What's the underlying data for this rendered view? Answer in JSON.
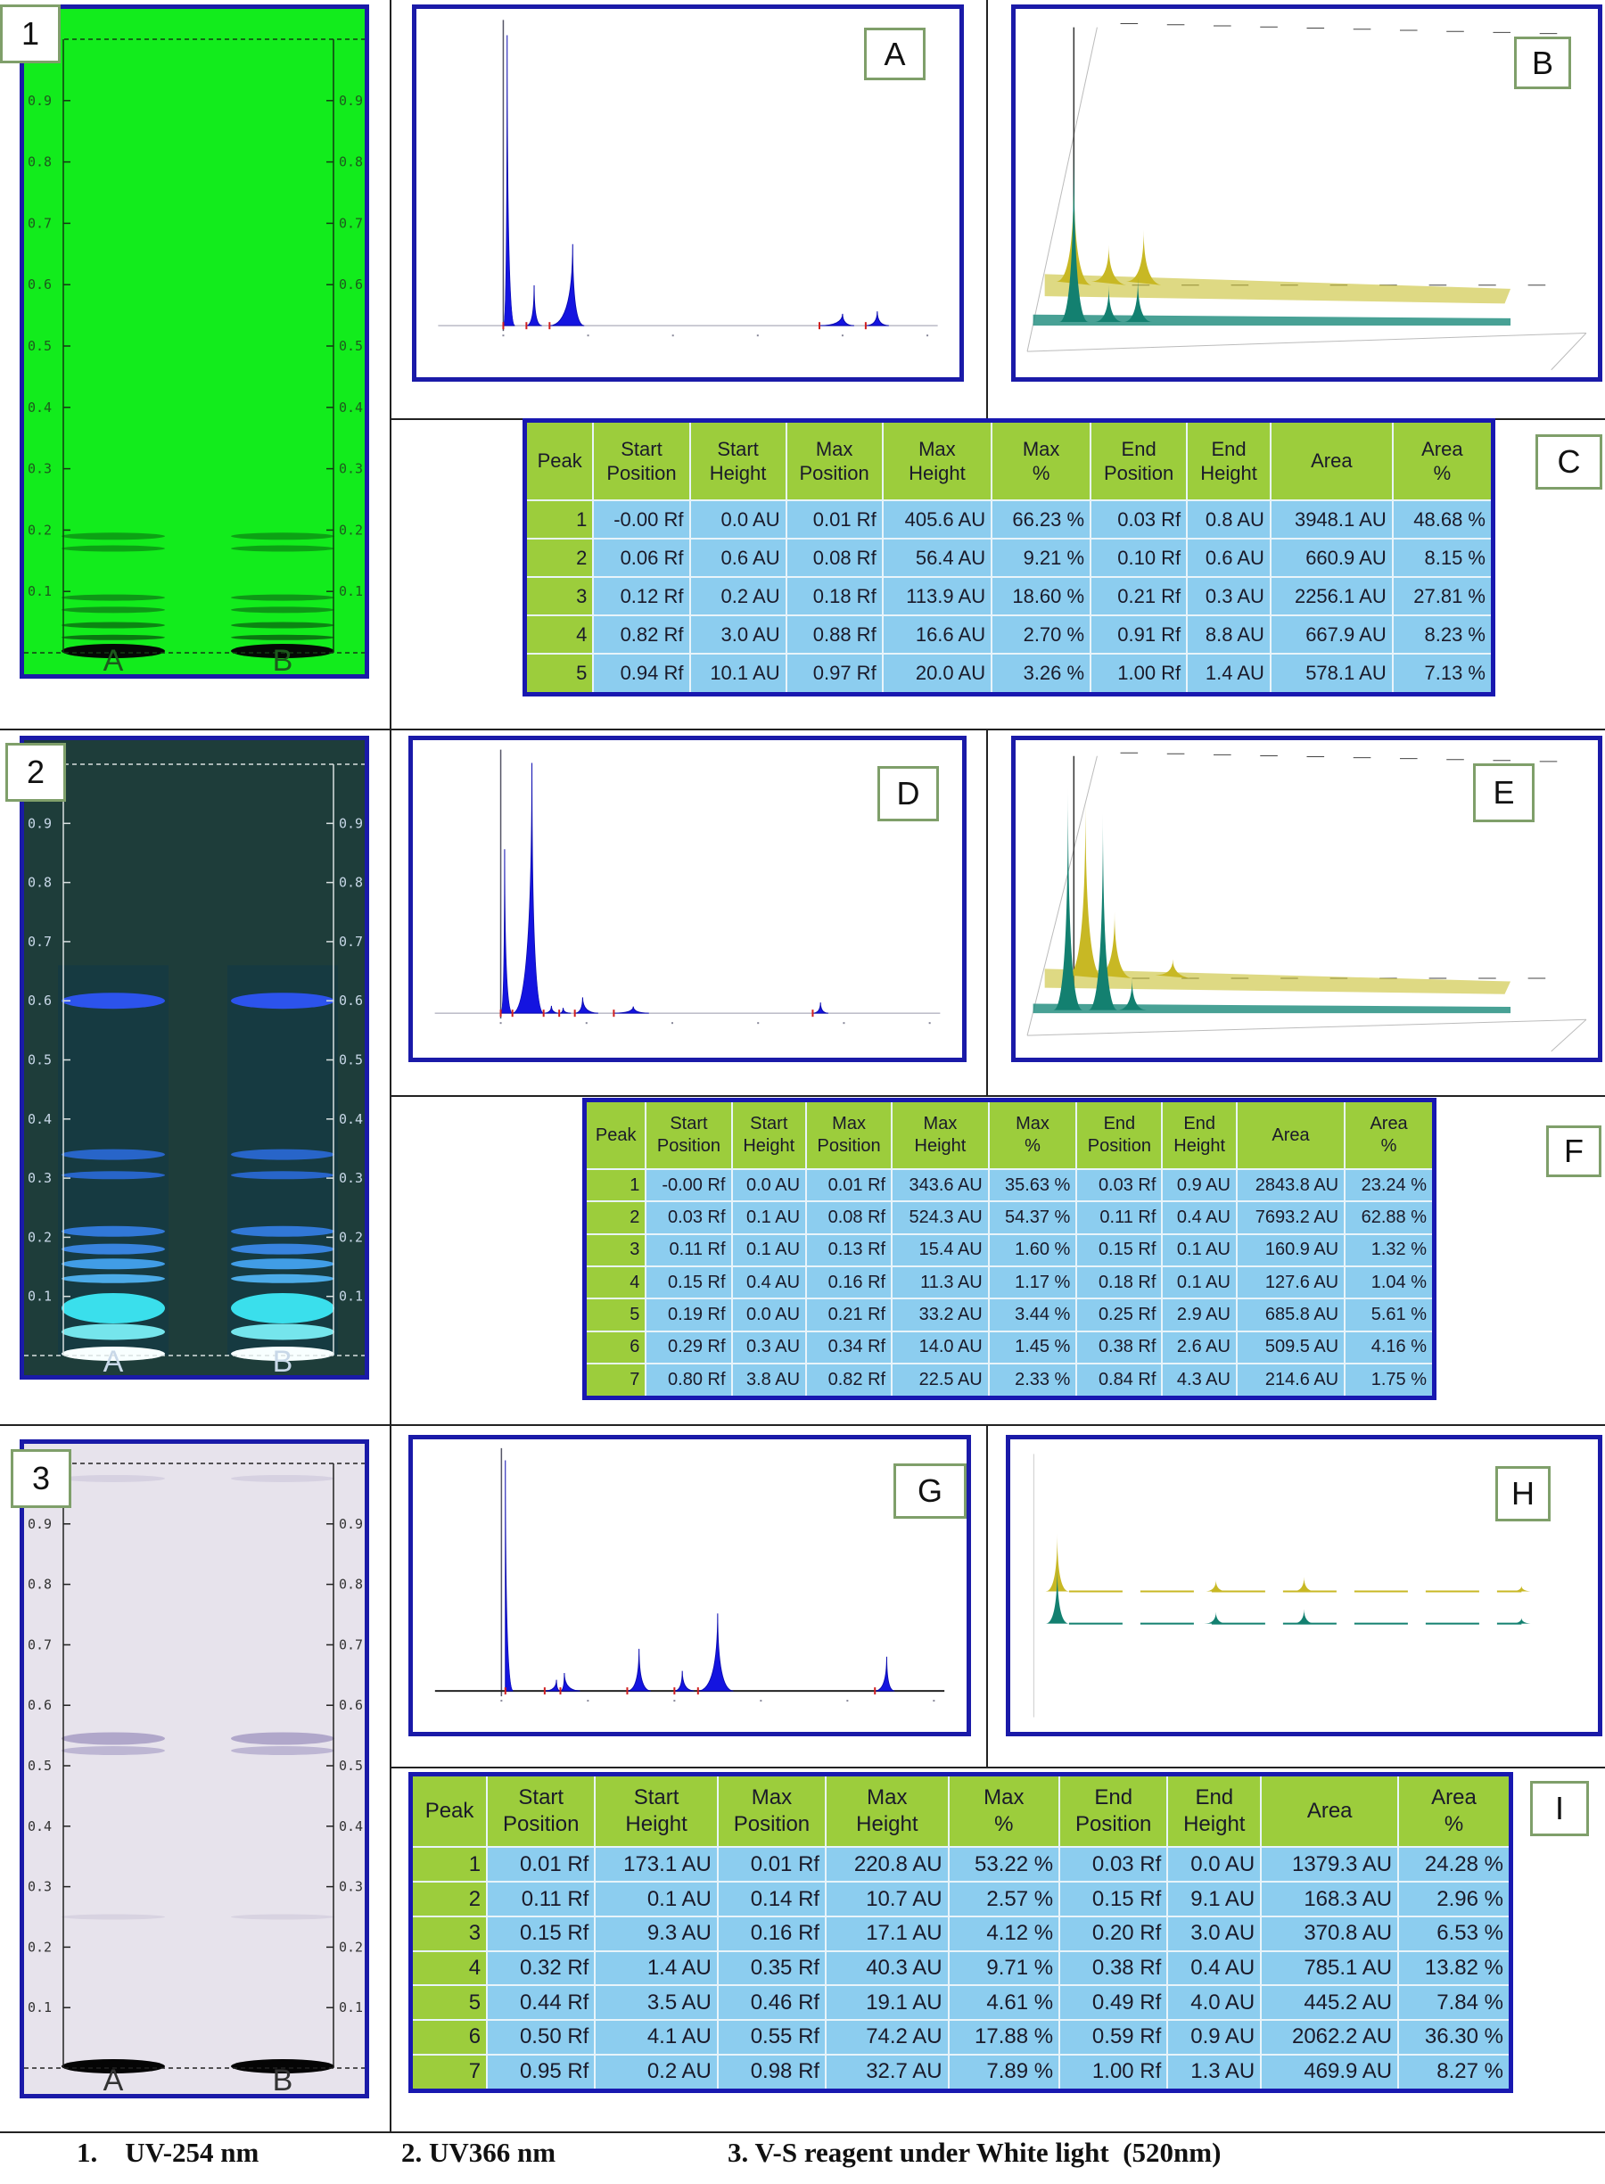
{
  "plates": [
    {
      "label": "1",
      "lanes": [
        "A",
        "B"
      ],
      "rf_ticks": [
        0.1,
        0.2,
        0.3,
        0.4,
        0.5,
        0.6,
        0.7,
        0.8,
        0.9
      ]
    },
    {
      "label": "2",
      "lanes": [
        "A",
        "B"
      ],
      "rf_ticks": [
        0.1,
        0.2,
        0.3,
        0.4,
        0.5,
        0.6,
        0.7,
        0.8,
        0.9
      ]
    },
    {
      "label": "3",
      "lanes": [
        "A",
        "B"
      ],
      "rf_ticks": [
        0.1,
        0.2,
        0.3,
        0.4,
        0.5,
        0.6,
        0.7,
        0.8,
        0.9
      ]
    }
  ],
  "chromatograms": [
    {
      "label": "A"
    },
    {
      "label": "B"
    },
    {
      "label": "D"
    },
    {
      "label": "E"
    },
    {
      "label": "G"
    },
    {
      "label": "H"
    }
  ],
  "tables": [
    {
      "label": "C",
      "headers": [
        [
          "Peak"
        ],
        [
          "Start",
          "Position"
        ],
        [
          "Start",
          "Height"
        ],
        [
          "Max",
          "Position"
        ],
        [
          "Max",
          "Height"
        ],
        [
          "Max",
          "%"
        ],
        [
          "End",
          "Position"
        ],
        [
          "End",
          "Height"
        ],
        [
          "Area"
        ],
        [
          "Area",
          "%"
        ]
      ],
      "rows": [
        [
          1,
          "-0.00 Rf",
          "0.0 AU",
          "0.01 Rf",
          "405.6 AU",
          "66.23 %",
          "0.03 Rf",
          "0.8 AU",
          "3948.1 AU",
          "48.68 %"
        ],
        [
          2,
          "0.06 Rf",
          "0.6 AU",
          "0.08 Rf",
          "56.4 AU",
          "9.21 %",
          "0.10 Rf",
          "0.6 AU",
          "660.9 AU",
          "8.15 %"
        ],
        [
          3,
          "0.12 Rf",
          "0.2 AU",
          "0.18 Rf",
          "113.9 AU",
          "18.60 %",
          "0.21 Rf",
          "0.3 AU",
          "2256.1 AU",
          "27.81 %"
        ],
        [
          4,
          "0.82 Rf",
          "3.0 AU",
          "0.88 Rf",
          "16.6 AU",
          "2.70 %",
          "0.91 Rf",
          "8.8 AU",
          "667.9 AU",
          "8.23 %"
        ],
        [
          5,
          "0.94 Rf",
          "10.1 AU",
          "0.97 Rf",
          "20.0 AU",
          "3.26 %",
          "1.00 Rf",
          "1.4 AU",
          "578.1 AU",
          "7.13 %"
        ]
      ]
    },
    {
      "label": "F",
      "headers": [
        [
          "Peak"
        ],
        [
          "Start",
          "Position"
        ],
        [
          "Start",
          "Height"
        ],
        [
          "Max",
          "Position"
        ],
        [
          "Max",
          "Height"
        ],
        [
          "Max",
          "%"
        ],
        [
          "End",
          "Position"
        ],
        [
          "End",
          "Height"
        ],
        [
          "Area"
        ],
        [
          "Area",
          "%"
        ]
      ],
      "rows": [
        [
          1,
          "-0.00 Rf",
          "0.0 AU",
          "0.01 Rf",
          "343.6 AU",
          "35.63 %",
          "0.03 Rf",
          "0.9 AU",
          "2843.8 AU",
          "23.24 %"
        ],
        [
          2,
          "0.03 Rf",
          "0.1 AU",
          "0.08 Rf",
          "524.3 AU",
          "54.37 %",
          "0.11 Rf",
          "0.4 AU",
          "7693.2 AU",
          "62.88 %"
        ],
        [
          3,
          "0.11 Rf",
          "0.1 AU",
          "0.13 Rf",
          "15.4 AU",
          "1.60 %",
          "0.15 Rf",
          "0.1 AU",
          "160.9 AU",
          "1.32 %"
        ],
        [
          4,
          "0.15 Rf",
          "0.4 AU",
          "0.16 Rf",
          "11.3 AU",
          "1.17 %",
          "0.18 Rf",
          "0.1 AU",
          "127.6 AU",
          "1.04 %"
        ],
        [
          5,
          "0.19 Rf",
          "0.0 AU",
          "0.21 Rf",
          "33.2 AU",
          "3.44 %",
          "0.25 Rf",
          "2.9 AU",
          "685.8 AU",
          "5.61 %"
        ],
        [
          6,
          "0.29 Rf",
          "0.3 AU",
          "0.34 Rf",
          "14.0 AU",
          "1.45 %",
          "0.38 Rf",
          "2.6 AU",
          "509.5 AU",
          "4.16 %"
        ],
        [
          7,
          "0.80 Rf",
          "3.8 AU",
          "0.82 Rf",
          "22.5 AU",
          "2.33 %",
          "0.84 Rf",
          "4.3 AU",
          "214.6 AU",
          "1.75 %"
        ]
      ]
    },
    {
      "label": "I",
      "headers": [
        [
          "Peak"
        ],
        [
          "Start",
          "Position"
        ],
        [
          "Start",
          "Height"
        ],
        [
          "Max",
          "Position"
        ],
        [
          "Max",
          "Height"
        ],
        [
          "Max",
          "%"
        ],
        [
          "End",
          "Position"
        ],
        [
          "End",
          "Height"
        ],
        [
          "Area"
        ],
        [
          "Area",
          "%"
        ]
      ],
      "rows": [
        [
          1,
          "0.01 Rf",
          "173.1 AU",
          "0.01 Rf",
          "220.8 AU",
          "53.22 %",
          "0.03 Rf",
          "0.0 AU",
          "1379.3 AU",
          "24.28 %"
        ],
        [
          2,
          "0.11 Rf",
          "0.1 AU",
          "0.14 Rf",
          "10.7 AU",
          "2.57 %",
          "0.15 Rf",
          "9.1 AU",
          "168.3 AU",
          "2.96 %"
        ],
        [
          3,
          "0.15 Rf",
          "9.3 AU",
          "0.16 Rf",
          "17.1 AU",
          "4.12 %",
          "0.20 Rf",
          "3.0 AU",
          "370.8 AU",
          "6.53 %"
        ],
        [
          4,
          "0.32 Rf",
          "1.4 AU",
          "0.35 Rf",
          "40.3 AU",
          "9.71 %",
          "0.38 Rf",
          "0.4 AU",
          "785.1 AU",
          "13.82 %"
        ],
        [
          5,
          "0.44 Rf",
          "3.5 AU",
          "0.46 Rf",
          "19.1 AU",
          "4.61 %",
          "0.49 Rf",
          "4.0 AU",
          "445.2 AU",
          "7.84 %"
        ],
        [
          6,
          "0.50 Rf",
          "4.1 AU",
          "0.55 Rf",
          "74.2 AU",
          "17.88 %",
          "0.59 Rf",
          "0.9 AU",
          "2062.2 AU",
          "36.30 %"
        ],
        [
          7,
          "0.95 Rf",
          "0.2 AU",
          "0.98 Rf",
          "32.7 AU",
          "7.89 %",
          "1.00 Rf",
          "1.3 AU",
          "469.9 AU",
          "8.27 %"
        ]
      ]
    }
  ],
  "caption": [
    "1.    UV-254 nm",
    "2. UV366 nm",
    "3. V-S reagent under White light  (520nm)"
  ]
}
